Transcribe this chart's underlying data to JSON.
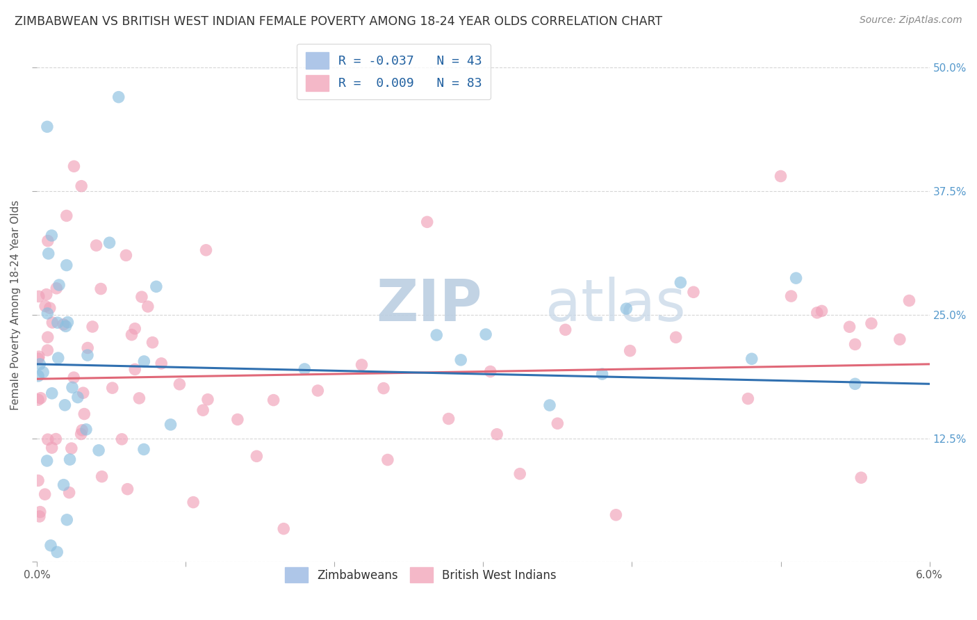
{
  "title": "ZIMBABWEAN VS BRITISH WEST INDIAN FEMALE POVERTY AMONG 18-24 YEAR OLDS CORRELATION CHART",
  "source": "Source: ZipAtlas.com",
  "ylabel": "Female Poverty Among 18-24 Year Olds",
  "xlim": [
    0.0,
    6.0
  ],
  "ylim": [
    0.0,
    52.0
  ],
  "yticks": [
    0.0,
    12.5,
    25.0,
    37.5,
    50.0
  ],
  "xticks": [
    0.0,
    1.0,
    2.0,
    3.0,
    4.0,
    5.0,
    6.0
  ],
  "blue_color": "#8bbfe0",
  "pink_color": "#f0a0b8",
  "blue_line_color": "#3070b0",
  "pink_line_color": "#e06878",
  "background_color": "#ffffff",
  "grid_color": "#cccccc",
  "title_color": "#333333",
  "source_color": "#888888",
  "watermark_color": "#ccd8e8",
  "right_axis_color": "#5599cc",
  "legend_label_color": "#2060a0"
}
